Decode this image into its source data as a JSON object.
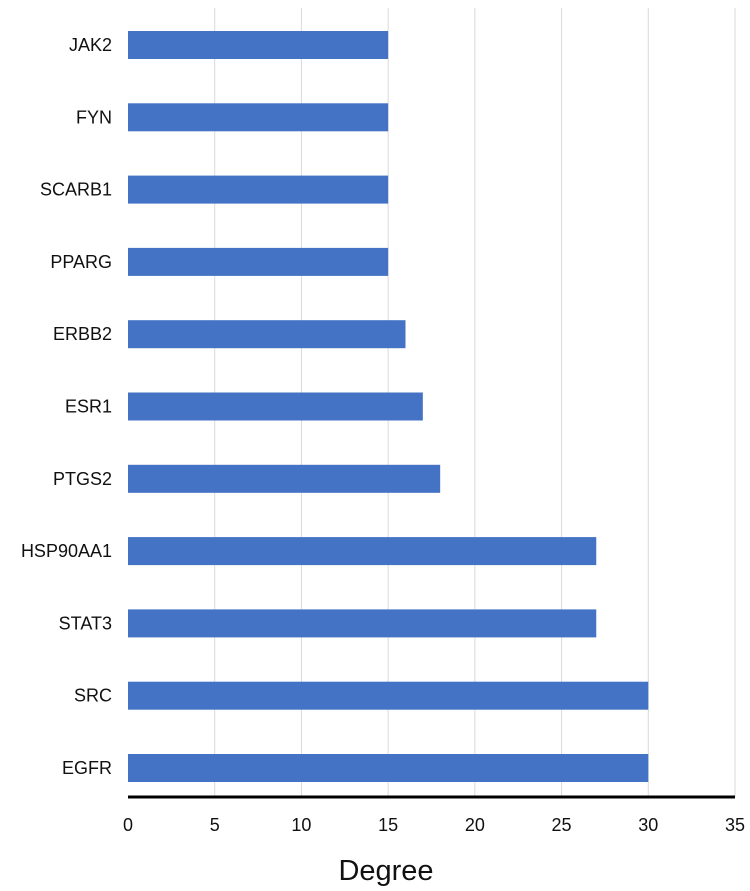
{
  "chart_data": {
    "type": "bar",
    "orientation": "horizontal",
    "categories": [
      "JAK2",
      "FYN",
      "SCARB1",
      "PPARG",
      "ERBB2",
      "ESR1",
      "PTGS2",
      "HSP90AA1",
      "STAT3",
      "SRC",
      "EGFR"
    ],
    "values": [
      15,
      15,
      15,
      15,
      16,
      17,
      18,
      27,
      27,
      30,
      30
    ],
    "title": "",
    "xlabel": "Degree",
    "ylabel": "",
    "xlim": [
      0,
      35
    ],
    "xticks": [
      "0",
      "5",
      "10",
      "15",
      "20",
      "25",
      "30",
      "35"
    ],
    "grid": "vertical",
    "legend": "none",
    "colors": {
      "bar": "#4472c4",
      "grid": "#d9d9d9",
      "axis": "#000000"
    }
  }
}
